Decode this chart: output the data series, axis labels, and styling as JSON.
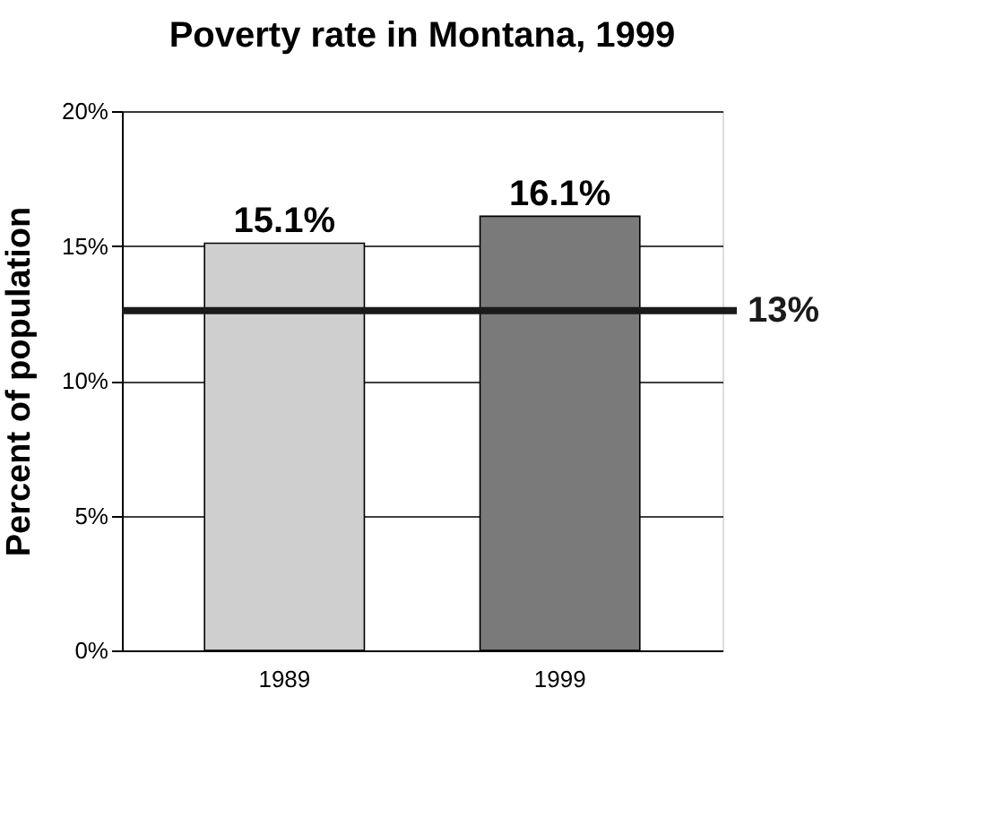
{
  "chart_data": {
    "type": "bar",
    "title": "Poverty rate in Montana, 1999",
    "ylabel": "Percent of population",
    "categories": [
      "1989",
      "1999"
    ],
    "values": [
      15.1,
      16.1
    ],
    "colors": [
      "#cfcfcf",
      "#7a7a7a"
    ],
    "value_labels": [
      "15.1%",
      "16.1%"
    ],
    "ylim": [
      0,
      20
    ],
    "yticks": [
      {
        "value": 0,
        "label": "0%"
      },
      {
        "value": 5,
        "label": "5%"
      },
      {
        "value": 10,
        "label": "10%"
      },
      {
        "value": 15,
        "label": "15%"
      },
      {
        "value": 20,
        "label": "20%"
      }
    ],
    "ref_lines": [
      {
        "axis": "y",
        "value": 12.6,
        "label": "13%",
        "color": "#1a1a1a"
      }
    ],
    "grid": "y"
  }
}
